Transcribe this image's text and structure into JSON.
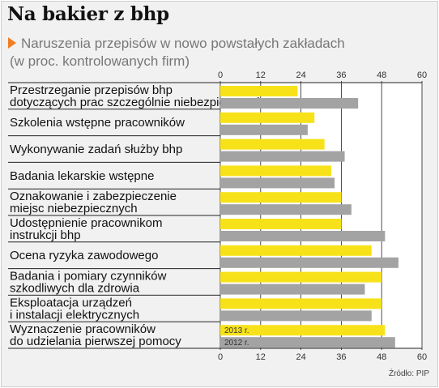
{
  "title": "Na bakier z bhp",
  "subtitle": "Naruszenia przepisów w nowo powstałych zakładach",
  "unit_note": "(w proc. kontrolowanych firm)",
  "source": "Źródło: PIP",
  "colors": {
    "series_2013": "#f7e21a",
    "series_2012": "#a3a3a3",
    "accent_arrow": "#f07e22",
    "background": "#f1f1f1"
  },
  "chart_data": {
    "type": "bar",
    "orientation": "horizontal",
    "categories": [
      [
        "Przestrzeganie przepisów bhp",
        "dotyczących prac szczególnie niebezpiecznych"
      ],
      [
        "Szkolenia wstępne pracowników"
      ],
      [
        "Wykonywanie zadań służby bhp"
      ],
      [
        "Badania lekarskie wstępne"
      ],
      [
        "Oznakowanie i zabezpieczenie",
        "miejsc niebezpiecznych"
      ],
      [
        "Udostępnienie pracownikom",
        "instrukcji bhp"
      ],
      [
        "Ocena ryzyka zawodowego"
      ],
      [
        "Badania i pomiary czynników",
        "szkodliwych dla zdrowia"
      ],
      [
        "Eksploatacja urządzeń",
        "i instalacji elektrycznych"
      ],
      [
        "Wyznaczenie pracowników",
        "do udzielania pierwszej pomocy"
      ]
    ],
    "series": [
      {
        "name": "2013 r.",
        "values": [
          23,
          28,
          31,
          33,
          36,
          36,
          45,
          48,
          48,
          49
        ]
      },
      {
        "name": "2012 r.",
        "values": [
          41,
          26,
          37,
          34,
          39,
          49,
          53,
          43,
          45,
          52
        ]
      }
    ],
    "xlim": [
      0,
      60
    ],
    "ticks": [
      0,
      12,
      24,
      36,
      48,
      60
    ],
    "legend_placement": "inside-last-group",
    "grid": true
  }
}
